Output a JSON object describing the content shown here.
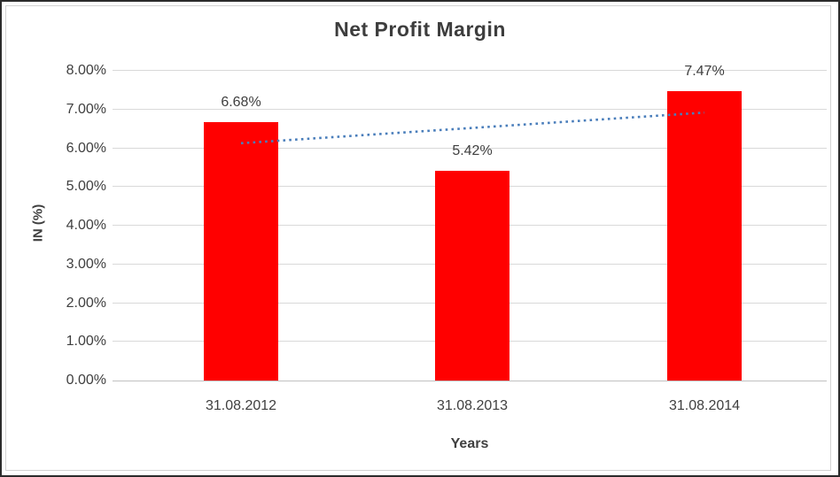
{
  "window": {
    "background": "#ffffff",
    "frame_border_color": "#2b2b2b",
    "chart_border_color": "#d2d2d2"
  },
  "chart_data": {
    "type": "bar",
    "title": "Net Profit Margin",
    "categories": [
      "31.08.2012",
      "31.08.2013",
      "31.08.2014"
    ],
    "values": [
      6.68,
      5.42,
      7.47
    ],
    "data_labels": [
      "6.68%",
      "5.42%",
      "7.47%"
    ],
    "xlabel": "Years",
    "ylabel": "IN (%)",
    "ylim": [
      0,
      8
    ],
    "ytick_step": 1,
    "ytick_labels": [
      "0.00%",
      "1.00%",
      "2.00%",
      "3.00%",
      "4.00%",
      "5.00%",
      "6.00%",
      "7.00%",
      "8.00%"
    ],
    "grid": true,
    "legend_position": "none",
    "bar_color": "#ff0000",
    "gridline_color": "#d9d9d9",
    "axis_line_color": "#c0c0c0",
    "text_color": "#3f3f3f",
    "title_color": "#3d3d3d",
    "trendline": {
      "style": "dotted",
      "color": "#4a7ebb",
      "start_value": 6.13,
      "end_value": 6.92,
      "spans": "bar1-center to bar3-center"
    }
  }
}
